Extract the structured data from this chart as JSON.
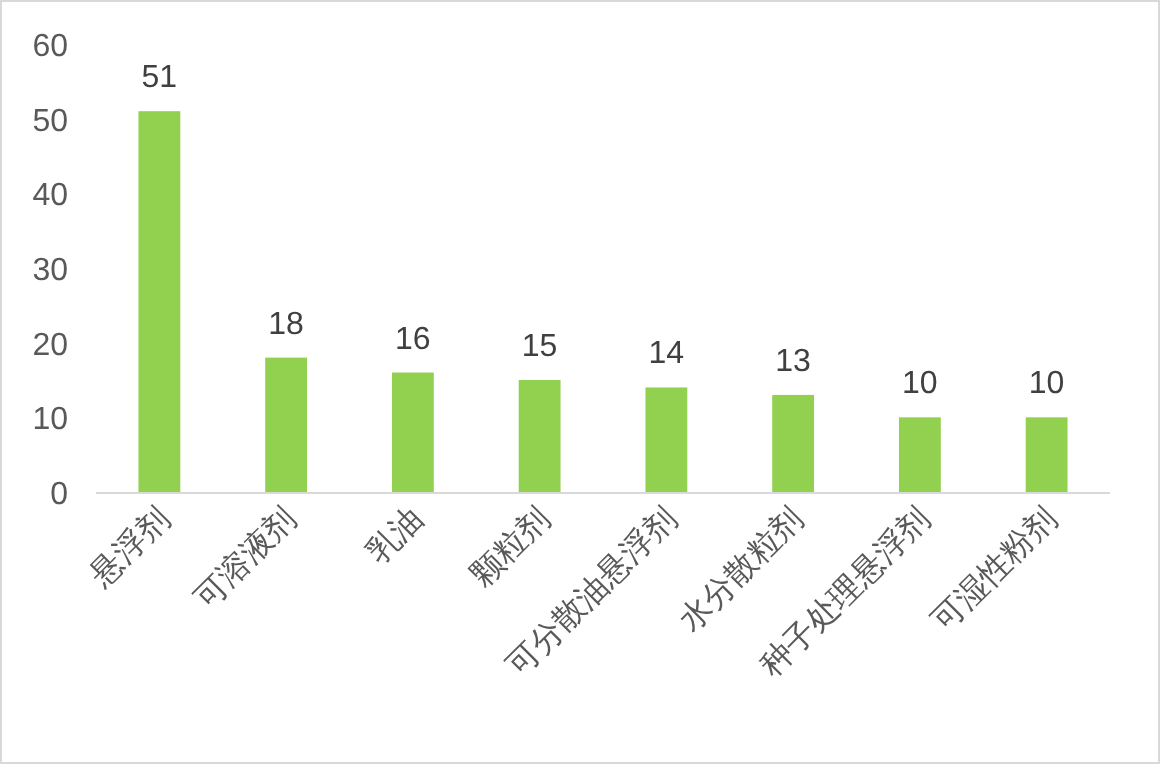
{
  "chart_data": {
    "type": "bar",
    "categories": [
      "悬浮剂",
      "可溶液剂",
      "乳油",
      "颗粒剂",
      "可分散油悬浮剂",
      "水分散粒剂",
      "种子处理悬浮剂",
      "可湿性粉剂"
    ],
    "values": [
      51,
      18,
      16,
      15,
      14,
      13,
      10,
      10
    ],
    "color": "#92d050",
    "ylim": [
      0,
      60
    ],
    "yticks": [
      0,
      10,
      20,
      30,
      40,
      50,
      60
    ],
    "data_labels": true
  }
}
